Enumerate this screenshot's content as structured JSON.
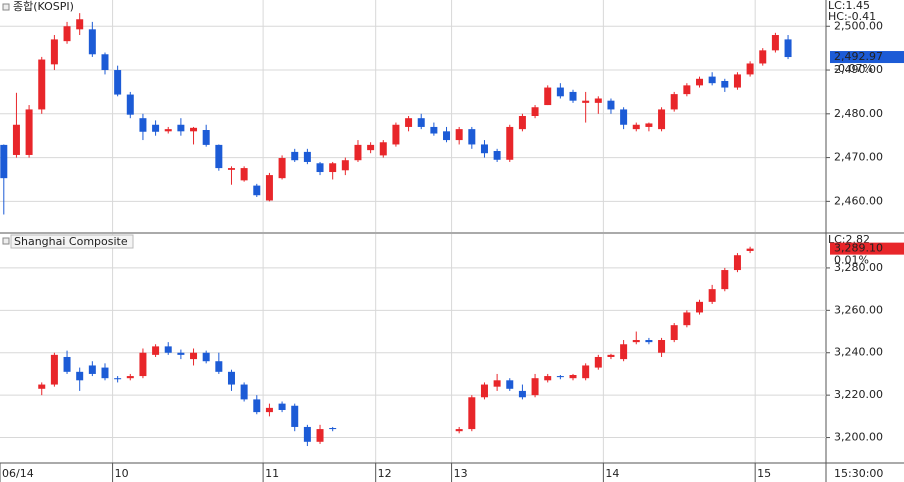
{
  "chart_data": [
    {
      "type": "candlestick",
      "title": "종합(KOSPI)",
      "up_color": "#e8262a",
      "down_color": "#1c5bd6",
      "xlim": [
        -0.3,
        65
      ],
      "ylim": [
        2453,
        2506
      ],
      "yticks": [
        {
          "value": 2460,
          "label": "2,460.00"
        },
        {
          "value": 2470,
          "label": "2,470.00"
        },
        {
          "value": 2480,
          "label": "2,480.00"
        },
        {
          "value": 2490,
          "label": "2,490.00"
        },
        {
          "value": 2500,
          "label": "2,500.00"
        }
      ],
      "annotations": [
        {
          "text": "LC:1.45",
          "color": "#e8262a"
        },
        {
          "text": "HC:-0.41",
          "color": "#1c5bd6"
        }
      ],
      "last_price": {
        "value": 2492.97,
        "label": "2,492.97",
        "change": "-0.07%",
        "color": "#1c5bd6"
      },
      "open": [
        2472.9,
        2470.6,
        2470.6,
        2481,
        2491.3,
        2496.6,
        2499.3,
        2499.3,
        2493.6,
        2490,
        2484.4,
        2479,
        2477.5,
        2476,
        2477.5,
        2476,
        2476.3,
        2472.9,
        2467.2,
        2464.8,
        2463.6,
        2460.2,
        2465.3,
        2471.3,
        2471.3,
        2468.7,
        2466.7,
        2467.1,
        2469.4,
        2471.7,
        2470.5,
        2473,
        2477,
        2479,
        2477,
        2476,
        2474,
        2476.5,
        2473,
        2471.5,
        2469.5,
        2476.5,
        2479.5,
        2482,
        2486,
        2485,
        2482.5,
        2482.5,
        2483,
        2481,
        2476.5,
        2477,
        2476.5,
        2481,
        2484.5,
        2486.5,
        2488.5,
        2487.5,
        2486,
        2489,
        2491.5,
        2494.5,
        2497
      ],
      "high": [
        2473,
        2484.8,
        2482,
        2493,
        2498,
        2501,
        2503,
        2501,
        2494,
        2491,
        2485,
        2480,
        2478.5,
        2477,
        2479,
        2477,
        2477.5,
        2473,
        2468,
        2468,
        2464,
        2466.5,
        2470.5,
        2472,
        2472,
        2469,
        2469,
        2470,
        2474,
        2473.5,
        2474,
        2478,
        2479.5,
        2480,
        2478,
        2477,
        2477,
        2477,
        2474,
        2472,
        2477.5,
        2480,
        2482,
        2486.5,
        2487,
        2485.5,
        2485,
        2484,
        2483.5,
        2481.5,
        2478,
        2478,
        2481.5,
        2485,
        2487,
        2488.5,
        2489.5,
        2488,
        2489.5,
        2492,
        2495,
        2498.5,
        2498
      ],
      "low": [
        2457,
        2470,
        2470,
        2480,
        2490,
        2496,
        2498,
        2493,
        2489,
        2484,
        2479,
        2474,
        2475,
        2475.5,
        2475,
        2473,
        2472.5,
        2467,
        2463.8,
        2464.5,
        2461,
        2460,
        2465,
        2469,
        2468.5,
        2466,
        2465,
        2466,
        2469,
        2471,
        2470,
        2472.5,
        2476,
        2476.5,
        2475,
        2473.5,
        2473,
        2472,
        2470,
        2469,
        2469,
        2476,
        2479,
        2482,
        2483.5,
        2482.5,
        2478,
        2480,
        2480,
        2476.5,
        2476,
        2476,
        2476,
        2480.5,
        2484,
        2486,
        2486.5,
        2485,
        2485.5,
        2488.5,
        2491,
        2494,
        2492.5
      ],
      "close": [
        2465.3,
        2477.5,
        2481,
        2492.4,
        2497,
        2500,
        2501.6,
        2493.6,
        2490,
        2484.4,
        2479.8,
        2475.9,
        2475.9,
        2476.5,
        2476,
        2476.8,
        2472.9,
        2467.6,
        2467.6,
        2467.6,
        2461.4,
        2466,
        2469.9,
        2469.4,
        2469,
        2466.7,
        2468.7,
        2469.4,
        2472.9,
        2472.9,
        2473.5,
        2477.5,
        2479,
        2477,
        2475.5,
        2474,
        2476.5,
        2473,
        2471,
        2469.5,
        2477,
        2479.5,
        2481.5,
        2486,
        2484,
        2483,
        2483,
        2483.5,
        2481,
        2477.5,
        2477.5,
        2477.8,
        2481,
        2484.5,
        2486.5,
        2488,
        2487,
        2486,
        2489,
        2491.5,
        2494.5,
        2498,
        2492.97
      ]
    },
    {
      "type": "candlestick",
      "title": "Shanghai Composite",
      "up_color": "#e8262a",
      "down_color": "#1c5bd6",
      "xlim": [
        -0.3,
        65
      ],
      "ylim": [
        3188,
        3296
      ],
      "yticks": [
        {
          "value": 3200,
          "label": "3,200.00"
        },
        {
          "value": 3220,
          "label": "3,220.00"
        },
        {
          "value": 3240,
          "label": "3,240.00"
        },
        {
          "value": 3260,
          "label": "3,260.00"
        },
        {
          "value": 3280,
          "label": "3,280.00"
        }
      ],
      "xticks": [
        {
          "value": -0.3,
          "label": "06/14"
        },
        {
          "value": 8.6,
          "label": "10"
        },
        {
          "value": 20.5,
          "label": "11"
        },
        {
          "value": 29.4,
          "label": "12"
        },
        {
          "value": 35.4,
          "label": "13"
        },
        {
          "value": 47.4,
          "label": "14"
        },
        {
          "value": 59.4,
          "label": "15"
        }
      ],
      "x_end_label": "15:30:00",
      "annotations": [
        {
          "text": "LC:2.82",
          "color": "#e8262a"
        }
      ],
      "last_price": {
        "value": 3289.1,
        "label": "3,289.10",
        "change": "0.01%",
        "color": "#e8262a"
      },
      "open": [
        null,
        null,
        null,
        3223,
        3225,
        3238,
        3231,
        3234,
        3233,
        3228,
        3228,
        3229,
        3239,
        3243,
        3240,
        3237,
        3240,
        3236,
        3231,
        3225,
        3218,
        3212,
        3216,
        3215,
        3205,
        3198,
        3204.5,
        null,
        null,
        null,
        null,
        null,
        null,
        null,
        null,
        null,
        3203,
        3204,
        3219,
        3224,
        3227,
        3222,
        3220,
        3227,
        3229,
        3228,
        3228,
        3233,
        3238,
        3237,
        3245,
        3246,
        3240,
        3246,
        3253,
        3259,
        3264,
        3270,
        3279,
        3288,
        null,
        null,
        null
      ],
      "high": [
        null,
        null,
        null,
        3226,
        3240,
        3241,
        3233,
        3236,
        3235,
        3229,
        3230,
        3242,
        3244,
        3245,
        3241.5,
        3242,
        3241,
        3240,
        3232,
        3226,
        3220,
        3216,
        3217,
        3216,
        3206,
        3206,
        3205,
        null,
        null,
        null,
        null,
        null,
        null,
        null,
        null,
        null,
        3205,
        3220,
        3226,
        3230,
        3228,
        3225,
        3230,
        3230,
        3229.5,
        3230,
        3235,
        3239,
        3239.5,
        3246,
        3250,
        3247,
        3247,
        3254,
        3260,
        3265,
        3272,
        3280,
        3287,
        3290,
        null,
        null,
        null
      ],
      "low": [
        null,
        null,
        null,
        3220,
        3224,
        3230,
        3222,
        3229,
        3227,
        3226,
        3227,
        3228,
        3238,
        3239,
        3237,
        3234,
        3235,
        3230,
        3222,
        3217,
        3211,
        3210,
        3212,
        3203,
        3196,
        3197,
        3203,
        null,
        null,
        null,
        null,
        null,
        null,
        null,
        null,
        null,
        3202,
        3203,
        3218,
        3222,
        3222,
        3218,
        3219,
        3226,
        3227.5,
        3227,
        3227,
        3232,
        3237,
        3236,
        3244,
        3244,
        3238,
        3245,
        3252,
        3258,
        3263,
        3269,
        3278,
        3287,
        null,
        null,
        null
      ],
      "close": [
        null,
        null,
        null,
        3225,
        3239,
        3231,
        3227,
        3230,
        3228,
        3227.5,
        3229,
        3240,
        3243,
        3240,
        3239,
        3240,
        3236,
        3231,
        3225,
        3218,
        3212,
        3214,
        3213,
        3205,
        3198,
        3204,
        3204,
        null,
        null,
        null,
        null,
        null,
        null,
        null,
        null,
        null,
        3204,
        3219,
        3225,
        3227,
        3223,
        3219,
        3228,
        3229,
        3228.5,
        3229.5,
        3234,
        3238,
        3239,
        3244,
        3246,
        3245,
        3246,
        3253,
        3259,
        3264,
        3270,
        3279,
        3286,
        3289.1,
        null,
        null,
        null
      ]
    }
  ]
}
